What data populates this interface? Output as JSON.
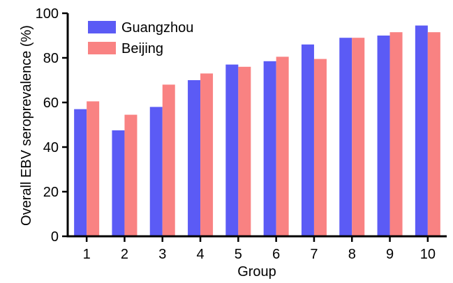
{
  "chart_data": {
    "type": "bar",
    "title": "",
    "xlabel": "Group",
    "ylabel": "Overall EBV seroprevalence (%)",
    "categories": [
      "1",
      "2",
      "3",
      "4",
      "5",
      "6",
      "7",
      "8",
      "9",
      "10"
    ],
    "ylim": [
      0,
      100
    ],
    "yticks": [
      "0",
      "20",
      "40",
      "60",
      "80",
      "100"
    ],
    "grid": false,
    "legend_position": "top-left",
    "series": [
      {
        "name": "Guangzhou",
        "color": "#5b5bf5",
        "values": [
          57,
          47.5,
          58,
          70,
          77,
          78.5,
          86,
          89,
          90,
          94.5
        ]
      },
      {
        "name": "Beijing",
        "color": "#f98282",
        "values": [
          60.5,
          54.5,
          68,
          73,
          76,
          80.5,
          79.5,
          89,
          91.5,
          91.5
        ]
      }
    ]
  }
}
